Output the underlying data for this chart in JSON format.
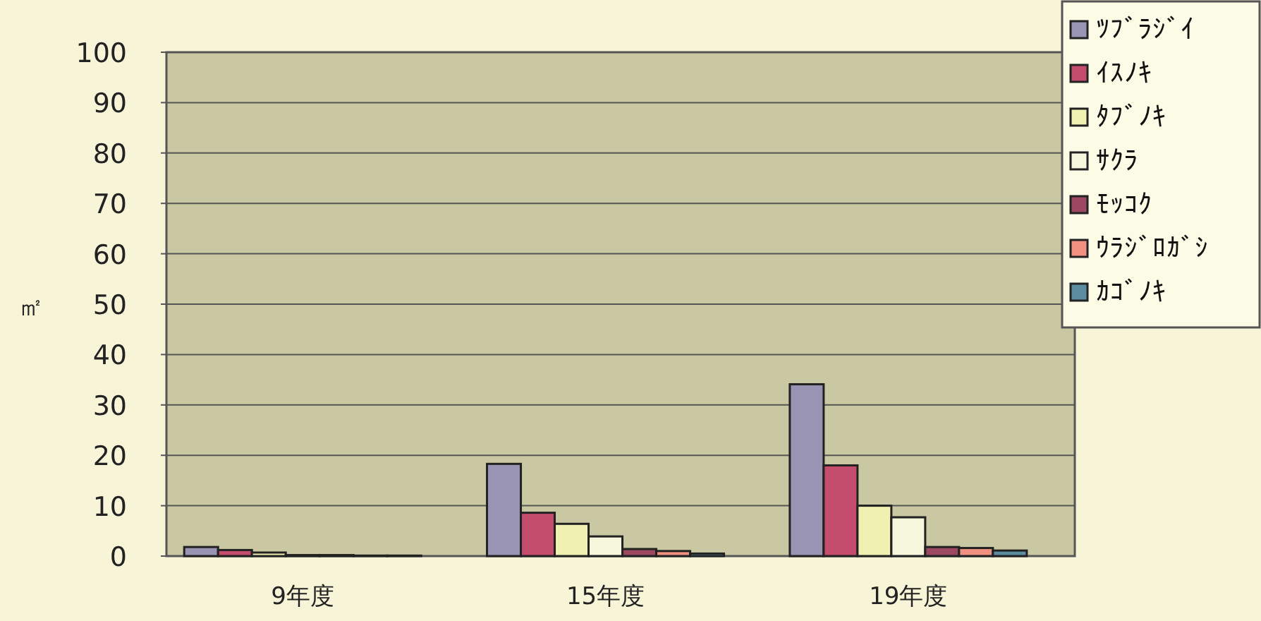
{
  "chart_data": {
    "type": "bar",
    "ylabel": "㎡",
    "categories": [
      "9年度",
      "15年度",
      "19年度"
    ],
    "ylim": [
      0,
      100
    ],
    "yticks": [
      0,
      10,
      20,
      30,
      40,
      50,
      60,
      70,
      80,
      90,
      100
    ],
    "grid": "y",
    "legend": "top right",
    "series": [
      {
        "name": "ﾂﾌﾞﾗｼﾞｲ",
        "color": "#9a94b4",
        "values": [
          1.8,
          18.3,
          34.1
        ]
      },
      {
        "name": "ｲｽﾉｷ",
        "color": "#c44c6c",
        "values": [
          1.2,
          8.6,
          18.0
        ]
      },
      {
        "name": "ﾀﾌﾞﾉｷ",
        "color": "#f0f0b0",
        "values": [
          0.7,
          6.4,
          10.0
        ]
      },
      {
        "name": "ｻｸﾗ",
        "color": "#f6f6dc",
        "values": [
          0.2,
          3.9,
          7.7
        ]
      },
      {
        "name": "ﾓｯｺｸ",
        "color": "#9c4860",
        "values": [
          0.2,
          1.4,
          1.8
        ]
      },
      {
        "name": "ｳﾗｼﾞﾛｶﾞｼ",
        "color": "#f09080",
        "values": [
          0.1,
          1.0,
          1.6
        ]
      },
      {
        "name": "ｶｺﾞﾉｷ",
        "color": "#5c8ca0",
        "values": [
          0.1,
          0.5,
          1.1
        ]
      }
    ]
  }
}
